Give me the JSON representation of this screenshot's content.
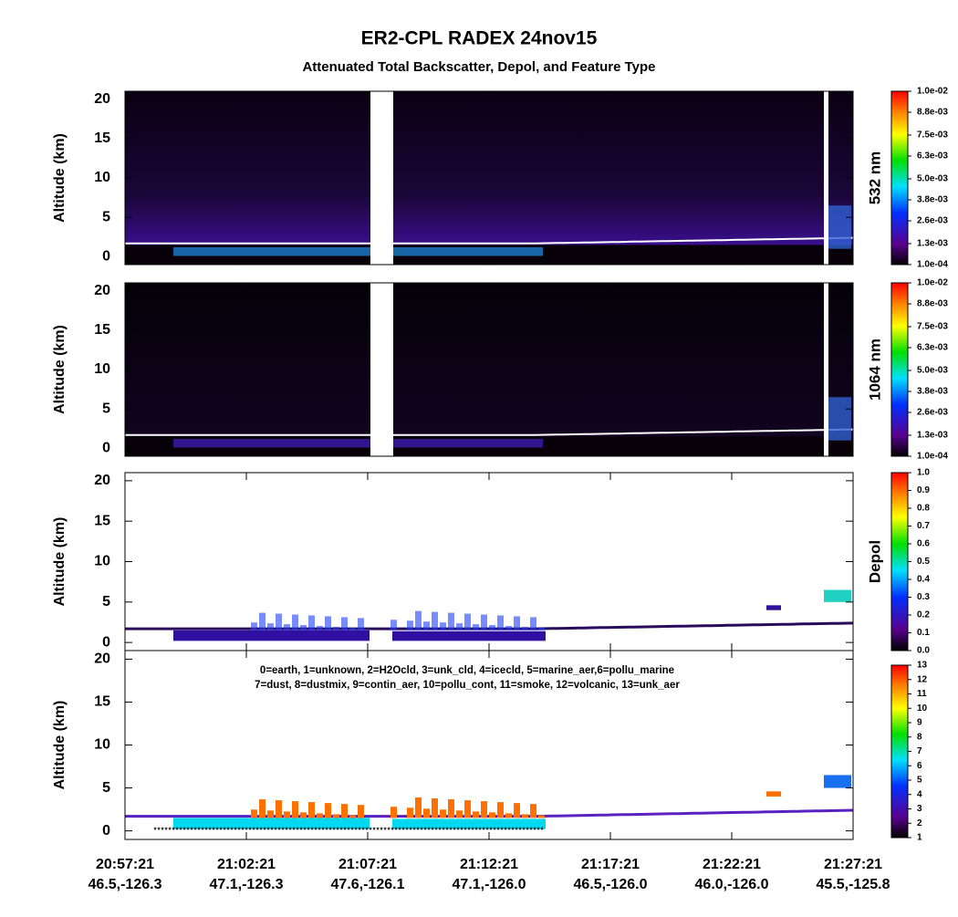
{
  "title": "ER2-CPL RADEX 24nov15",
  "subtitle": "Attenuated Total Backscatter, Depol, and Feature Type",
  "x_labels": [
    {
      "time": "20:57:21",
      "location": "46.5,-126.3"
    },
    {
      "time": "21:02:21",
      "location": "47.1,-126.3"
    },
    {
      "time": "21:07:21",
      "location": "47.6,-126.1"
    },
    {
      "time": "21:12:21",
      "location": "47.1,-126.0"
    },
    {
      "time": "21:17:21",
      "location": "46.5,-126.0"
    },
    {
      "time": "21:22:21",
      "location": "46.0,-126.0"
    },
    {
      "time": "21:27:21",
      "location": "45.5,-125.8"
    }
  ],
  "chart_data": [
    {
      "type": "curtain",
      "ylabel": "Altitude (km)",
      "ylim": [
        -1,
        21
      ],
      "yticks": [
        0,
        5,
        10,
        15,
        20
      ],
      "colorbar": {
        "label": "532 nm",
        "palette": "rainbow",
        "clim": [
          0.0001,
          0.01
        ],
        "ticks": [
          {
            "value": 0.0001,
            "label": "1.0e-04"
          },
          {
            "value": 0.0013,
            "label": "1.3e-03"
          },
          {
            "value": 0.0026,
            "label": "2.6e-03"
          },
          {
            "value": 0.0038,
            "label": "3.8e-03"
          },
          {
            "value": 0.005,
            "label": "5.0e-03"
          },
          {
            "value": 0.0063,
            "label": "6.3e-03"
          },
          {
            "value": 0.0075,
            "label": "7.5e-03"
          },
          {
            "value": 0.0088,
            "label": "8.8e-03"
          },
          {
            "value": 0.01,
            "label": "1.0e-02"
          }
        ]
      }
    },
    {
      "type": "curtain",
      "ylabel": "Altitude (km)",
      "ylim": [
        -1,
        21
      ],
      "yticks": [
        0,
        5,
        10,
        15,
        20
      ],
      "colorbar": {
        "label": "1064 nm",
        "palette": "rainbow",
        "clim": [
          0.0001,
          0.01
        ],
        "ticks": [
          {
            "value": 0.0001,
            "label": "1.0e-04"
          },
          {
            "value": 0.0013,
            "label": "1.3e-03"
          },
          {
            "value": 0.0026,
            "label": "2.6e-03"
          },
          {
            "value": 0.0038,
            "label": "3.8e-03"
          },
          {
            "value": 0.005,
            "label": "5.0e-03"
          },
          {
            "value": 0.0063,
            "label": "6.3e-03"
          },
          {
            "value": 0.0075,
            "label": "7.5e-03"
          },
          {
            "value": 0.0088,
            "label": "8.8e-03"
          },
          {
            "value": 0.01,
            "label": "1.0e-02"
          }
        ]
      }
    },
    {
      "type": "depol",
      "ylabel": "Altitude (km)",
      "ylim": [
        -1,
        21
      ],
      "yticks": [
        0,
        5,
        10,
        15,
        20
      ],
      "colorbar": {
        "label": "Depol",
        "palette": "rainbow",
        "clim": [
          0,
          1
        ],
        "ticks": [
          {
            "value": 0,
            "label": "0.0"
          },
          0.1,
          0.2,
          0.3,
          0.4,
          0.5,
          0.6,
          0.7,
          0.8,
          0.9,
          {
            "value": 1,
            "label": "1.0"
          }
        ]
      }
    },
    {
      "type": "feature",
      "ylabel": "Altitude (km)",
      "ylim": [
        -1,
        21
      ],
      "yticks": [
        0,
        5,
        10,
        15,
        20
      ],
      "annotations": [
        "0=earth, 1=unknown, 2=H2Ocld, 3=unk_cld, 4=icecld, 5=marine_aer,6=pollu_marine",
        "7=dust, 8=dustmix, 9=contin_aer, 10=pollu_cont, 11=smoke, 12=volcanic, 13=unk_aer"
      ],
      "colorbar": {
        "palette": "rainbow",
        "clim": [
          1,
          13
        ],
        "ticks": [
          1,
          2,
          3,
          4,
          5,
          6,
          7,
          8,
          9,
          10,
          11,
          12,
          13
        ]
      }
    }
  ]
}
